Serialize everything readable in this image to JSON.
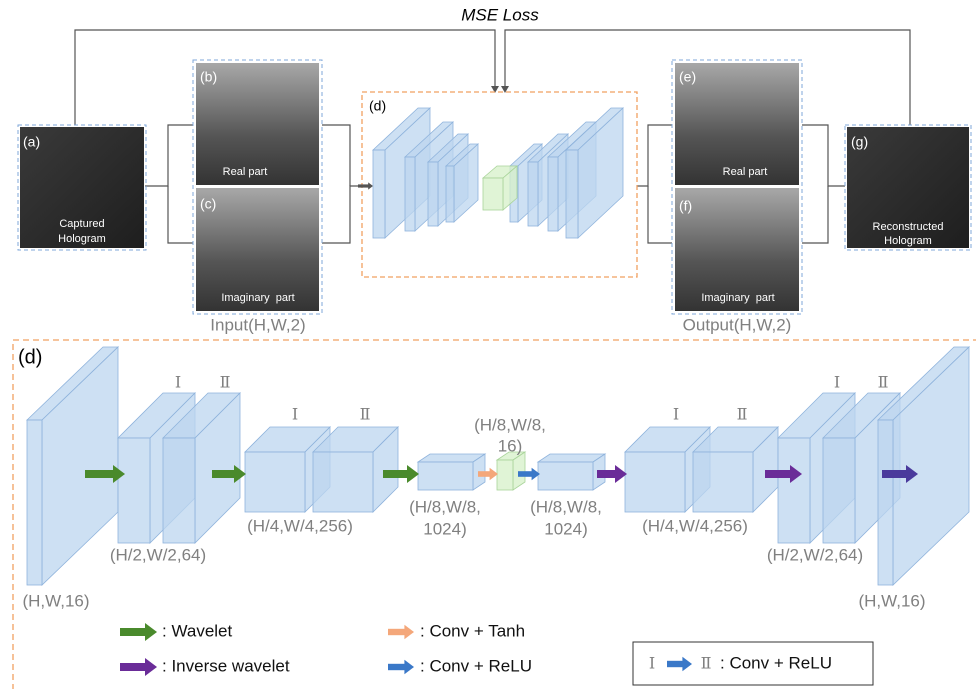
{
  "top": {
    "loss_label": "MSE Loss",
    "panels": [
      {
        "tag": "(a)",
        "caption": [
          "Captured",
          "Hologram"
        ]
      },
      {
        "tag": "(b)",
        "caption": [
          "Real part"
        ]
      },
      {
        "tag": "(c)",
        "caption": [
          "Imaginary  part"
        ]
      },
      {
        "tag": "(e)",
        "caption": [
          "Real part"
        ]
      },
      {
        "tag": "(f)",
        "caption": [
          "Imaginary  part"
        ]
      },
      {
        "tag": "(g)",
        "caption": [
          "Reconstructed",
          "Hologram"
        ]
      }
    ],
    "network_tag": "(d)",
    "input_label": "Input(H,W,2)",
    "output_label": "Output(H,W,2)"
  },
  "detail": {
    "tag": "(d)",
    "roman": [
      "Ⅰ",
      "Ⅱ"
    ],
    "stage_labels": [
      [
        "(H,W,16)"
      ],
      [
        "(H/2,W/2,64)"
      ],
      [
        "(H/4,W/4,256)"
      ],
      [
        "(H/8,W/8,",
        "1024)"
      ],
      [
        "(H/8,W/8,",
        "16)"
      ],
      [
        "(H/8,W/8,",
        "1024)"
      ],
      [
        "(H/4,W/4,256)"
      ],
      [
        "(H/2,W/2,64)"
      ],
      [
        "(H,W,16)"
      ]
    ],
    "legend": [
      ": Wavelet",
      ": Inverse wavelet",
      ": Conv + Tanh",
      ": Conv + ReLU",
      ": Conv + ReLU"
    ]
  }
}
